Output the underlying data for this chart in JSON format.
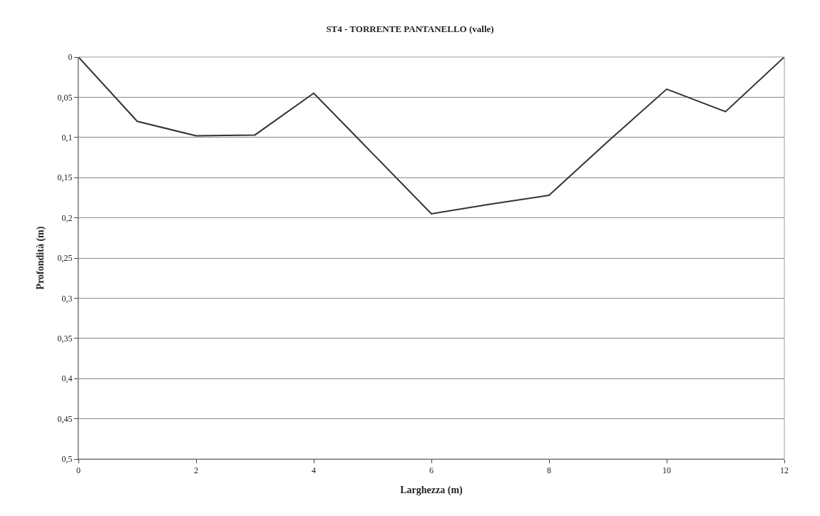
{
  "chart_data": {
    "type": "line",
    "title": "ST4 - TORRENTE PANTANELLO (valle)",
    "xlabel": "Larghezza (m)",
    "ylabel": "Profondità (m)",
    "x": [
      0,
      1,
      2,
      3,
      4,
      5,
      6,
      7,
      8,
      9,
      10,
      11,
      12
    ],
    "series": [
      {
        "color": "#333333",
        "values": [
          0,
          0.08,
          0.098,
          0.097,
          0.045,
          0.12,
          0.195,
          0.183,
          0.172,
          0.105,
          0.04,
          0.068,
          0
        ]
      }
    ],
    "xlim": [
      0,
      12
    ],
    "xticks": [
      0,
      2,
      4,
      6,
      8,
      10,
      12
    ],
    "ylim": [
      0.5,
      0
    ],
    "yticks": [
      0,
      {
        "value": 0.05,
        "label": "0,05"
      },
      {
        "value": 0.1,
        "label": "0,1"
      },
      {
        "value": 0.15,
        "label": "0,15"
      },
      {
        "value": 0.2,
        "label": "0,2"
      },
      {
        "value": 0.25,
        "label": "0,25"
      },
      {
        "value": 0.3,
        "label": "0,3"
      },
      {
        "value": 0.35,
        "label": "0,35"
      },
      {
        "value": 0.4,
        "label": "0,4"
      },
      {
        "value": 0.45,
        "label": "0,45"
      },
      {
        "value": 0.5,
        "label": "0,5"
      }
    ],
    "grid": "y",
    "marker": "none",
    "line_style": "solid"
  }
}
